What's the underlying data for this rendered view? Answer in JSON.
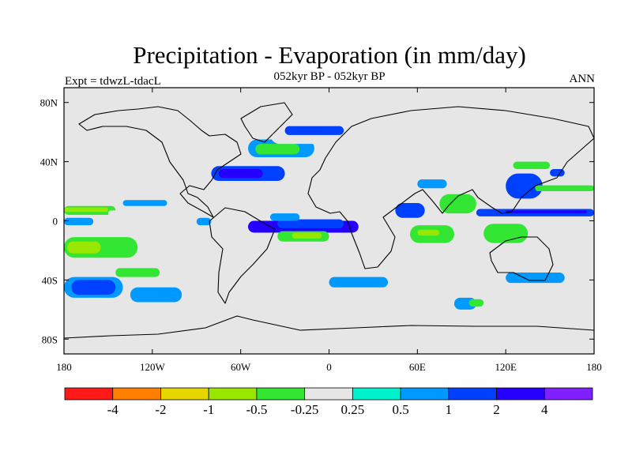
{
  "figure": {
    "title": "Precipitation - Evaporation (in mm/day)",
    "left_label": "Expt = tdwzL-tdacL",
    "center_label": "052kyr BP - 052kyr BP",
    "right_label": "ANN"
  },
  "map": {
    "projection": "cylindrical-equidistant",
    "lon_range": [
      -180,
      180
    ],
    "lat_range": [
      -90,
      90
    ],
    "land_color": "#e6e6e6"
  },
  "axes": {
    "x_ticks": [
      {
        "value": -180,
        "label": "180"
      },
      {
        "value": -120,
        "label": "120W"
      },
      {
        "value": -60,
        "label": "60W"
      },
      {
        "value": 0,
        "label": "0"
      },
      {
        "value": 60,
        "label": "60E"
      },
      {
        "value": 120,
        "label": "120E"
      },
      {
        "value": 180,
        "label": "180"
      }
    ],
    "y_ticks": [
      {
        "value": 80,
        "label": "80N"
      },
      {
        "value": 40,
        "label": "40N"
      },
      {
        "value": 0,
        "label": "0"
      },
      {
        "value": -40,
        "label": "40S"
      },
      {
        "value": -80,
        "label": "80S"
      }
    ]
  },
  "colorbar": {
    "colors": [
      "#ff1a1a",
      "#ff8000",
      "#e6d600",
      "#99e600",
      "#33e633",
      "#e6e6e6",
      "#00f2cc",
      "#0099ff",
      "#0040ff",
      "#2600ff",
      "#8020ff"
    ],
    "labels": [
      "-4",
      "-2",
      "-1",
      "-0.5",
      "-0.25",
      "0.25",
      "0.5",
      "1",
      "2",
      "4"
    ]
  },
  "chart_data": {
    "type": "heatmap",
    "title": "Precipitation - Evaporation (in mm/day)",
    "levels": [
      -4,
      -2,
      -1,
      -0.5,
      -0.25,
      0.25,
      0.5,
      1,
      2,
      4
    ],
    "regions": [
      {
        "lon": [
          -180,
          -145
        ],
        "lat": [
          4,
          10
        ],
        "value": -0.5
      },
      {
        "lon": [
          -180,
          -150
        ],
        "lat": [
          6,
          9
        ],
        "value": -1
      },
      {
        "lon": [
          -150,
          -110
        ],
        "lat": [
          3,
          7
        ],
        "value": -0.25
      },
      {
        "lon": [
          -180,
          -130
        ],
        "lat": [
          -25,
          -11
        ],
        "value": -0.5
      },
      {
        "lon": [
          -178,
          -155
        ],
        "lat": [
          -22,
          -14
        ],
        "value": -1
      },
      {
        "lon": [
          -180,
          -140
        ],
        "lat": [
          -52,
          -38
        ],
        "value": 0.5
      },
      {
        "lon": [
          -175,
          -145
        ],
        "lat": [
          -50,
          -40
        ],
        "value": 1
      },
      {
        "lon": [
          -145,
          -115
        ],
        "lat": [
          -38,
          -32
        ],
        "value": -0.5
      },
      {
        "lon": [
          -180,
          -160
        ],
        "lat": [
          -3,
          2
        ],
        "value": 0.5
      },
      {
        "lon": [
          -140,
          -110
        ],
        "lat": [
          10,
          14
        ],
        "value": 0.5
      },
      {
        "lon": [
          -80,
          -30
        ],
        "lat": [
          27,
          37
        ],
        "value": 1
      },
      {
        "lon": [
          -75,
          -45
        ],
        "lat": [
          29,
          35
        ],
        "value": 2
      },
      {
        "lon": [
          -55,
          -10
        ],
        "lat": [
          43,
          55
        ],
        "value": 0.5
      },
      {
        "lon": [
          -50,
          -20
        ],
        "lat": [
          45,
          52
        ],
        "value": -0.5
      },
      {
        "lon": [
          -40,
          5
        ],
        "lat": [
          52,
          65
        ],
        "value": -0.25
      },
      {
        "lon": [
          -30,
          10
        ],
        "lat": [
          58,
          64
        ],
        "value": 1
      },
      {
        "lon": [
          -55,
          20
        ],
        "lat": [
          -8,
          0
        ],
        "value": 2
      },
      {
        "lon": [
          -35,
          10
        ],
        "lat": [
          -5,
          1
        ],
        "value": 1
      },
      {
        "lon": [
          -35,
          0
        ],
        "lat": [
          -14,
          -7
        ],
        "value": -0.5
      },
      {
        "lon": [
          -25,
          -5
        ],
        "lat": [
          -12,
          -8
        ],
        "value": -1
      },
      {
        "lon": [
          -40,
          -20
        ],
        "lat": [
          0,
          5
        ],
        "value": 0.5
      },
      {
        "lon": [
          40,
          75
        ],
        "lat": [
          -22,
          5
        ],
        "value": -0.25
      },
      {
        "lon": [
          55,
          85
        ],
        "lat": [
          -15,
          -3
        ],
        "value": -0.5
      },
      {
        "lon": [
          60,
          75
        ],
        "lat": [
          -10,
          -6
        ],
        "value": -1
      },
      {
        "lon": [
          45,
          65
        ],
        "lat": [
          2,
          12
        ],
        "value": 1
      },
      {
        "lon": [
          75,
          100
        ],
        "lat": [
          5,
          18
        ],
        "value": -0.5
      },
      {
        "lon": [
          60,
          80
        ],
        "lat": [
          22,
          28
        ],
        "value": 0.5
      },
      {
        "lon": [
          100,
          180
        ],
        "lat": [
          3,
          8
        ],
        "value": 1
      },
      {
        "lon": [
          120,
          175
        ],
        "lat": [
          5,
          7
        ],
        "value": 2
      },
      {
        "lon": [
          105,
          135
        ],
        "lat": [
          -15,
          -2
        ],
        "value": -0.5
      },
      {
        "lon": [
          120,
          145
        ],
        "lat": [
          15,
          32
        ],
        "value": 1
      },
      {
        "lon": [
          125,
          150
        ],
        "lat": [
          35,
          40
        ],
        "value": -0.5
      },
      {
        "lon": [
          140,
          180
        ],
        "lat": [
          20,
          24
        ],
        "value": -0.5
      },
      {
        "lon": [
          120,
          160
        ],
        "lat": [
          -42,
          -35
        ],
        "value": 0.5
      },
      {
        "lon": [
          -135,
          -100
        ],
        "lat": [
          -55,
          -45
        ],
        "value": 0.5
      },
      {
        "lon": [
          0,
          40
        ],
        "lat": [
          -45,
          -38
        ],
        "value": 0.5
      },
      {
        "lon": [
          85,
          100
        ],
        "lat": [
          -60,
          -52
        ],
        "value": 0.5
      },
      {
        "lon": [
          95,
          105
        ],
        "lat": [
          -58,
          -53
        ],
        "value": -0.5
      },
      {
        "lon": [
          150,
          160
        ],
        "lat": [
          30,
          35
        ],
        "value": 1
      },
      {
        "lon": [
          -90,
          -80
        ],
        "lat": [
          -3,
          2
        ],
        "value": 0.5
      }
    ]
  }
}
